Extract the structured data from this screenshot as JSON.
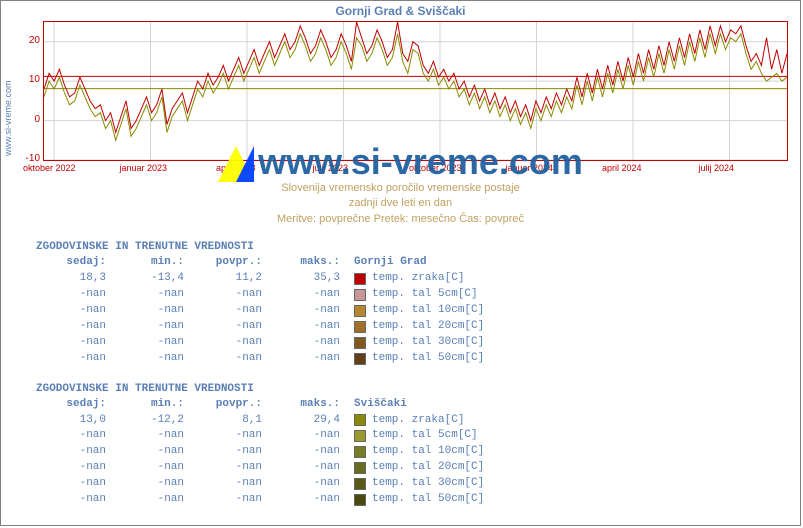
{
  "title": "Gornji Grad & Sviščaki",
  "ylabel": "www.si-vreme.com",
  "watermark": "www.si-vreme.com",
  "subtitle1": "Slovenija   vremensko poročilo   vremenske postaje",
  "subtitle2": "zadnji dve leti   en dan",
  "subtitle3": "Meritve: povprečne   Pretek: mesečno   Čas: povpreč",
  "chart": {
    "type": "line",
    "ylim": [
      -10,
      25
    ],
    "yticks": [
      -10,
      0,
      10,
      20
    ],
    "xticks": [
      "oktober 2022",
      "januar 2023",
      "april 2023",
      "julij 2023",
      "oktober 2023",
      "januar 2024",
      "april 2024",
      "julij 2024"
    ],
    "grid_color": "#d3d3d3",
    "border_color": "#c00000",
    "background_color": "#ffffff",
    "ref_lines": [
      {
        "y": 11.2,
        "color": "#c00000"
      },
      {
        "y": 8.1,
        "color": "#8a8a00"
      }
    ],
    "series": [
      {
        "name": "Gornji Grad",
        "color": "#c00000",
        "data": [
          8,
          12,
          10,
          13,
          9,
          6,
          7,
          11,
          8,
          5,
          3,
          4,
          0,
          2,
          -3,
          1,
          5,
          -2,
          0,
          3,
          6,
          2,
          4,
          8,
          -1,
          3,
          5,
          7,
          2,
          6,
          10,
          8,
          12,
          9,
          11,
          14,
          10,
          13,
          16,
          12,
          15,
          18,
          14,
          17,
          20,
          16,
          19,
          22,
          18,
          20,
          24,
          21,
          17,
          19,
          23,
          20,
          16,
          18,
          22,
          19,
          15,
          25,
          21,
          17,
          19,
          23,
          20,
          16,
          18,
          25,
          17,
          15,
          20,
          19,
          14,
          12,
          15,
          11,
          13,
          10,
          12,
          8,
          10,
          6,
          9,
          5,
          8,
          4,
          7,
          3,
          6,
          2,
          5,
          1,
          4,
          0,
          5,
          2,
          6,
          3,
          7,
          4,
          8,
          5,
          11,
          6,
          12,
          7,
          13,
          8,
          14,
          9,
          15,
          10,
          16,
          11,
          17,
          12,
          18,
          13,
          19,
          14,
          20,
          15,
          21,
          16,
          22,
          17,
          23,
          18,
          24,
          19,
          24,
          20,
          23,
          22,
          24,
          19,
          15,
          17,
          14,
          21,
          13,
          18,
          12,
          17
        ]
      },
      {
        "name": "Sviščaki",
        "color": "#8a8a00",
        "data": [
          6,
          10,
          8,
          11,
          7,
          4,
          5,
          9,
          6,
          3,
          1,
          2,
          -2,
          0,
          -5,
          -1,
          3,
          -4,
          -2,
          1,
          4,
          0,
          2,
          6,
          -3,
          1,
          3,
          5,
          0,
          4,
          8,
          6,
          10,
          7,
          9,
          12,
          8,
          11,
          14,
          10,
          13,
          16,
          12,
          15,
          18,
          14,
          17,
          20,
          16,
          18,
          22,
          19,
          15,
          17,
          21,
          18,
          14,
          16,
          20,
          17,
          13,
          21,
          19,
          15,
          17,
          21,
          18,
          14,
          16,
          22,
          15,
          12,
          18,
          17,
          12,
          10,
          13,
          9,
          11,
          8,
          10,
          6,
          8,
          4,
          7,
          3,
          6,
          2,
          5,
          1,
          4,
          0,
          3,
          -1,
          2,
          -2,
          3,
          0,
          4,
          1,
          5,
          2,
          6,
          3,
          9,
          4,
          10,
          5,
          11,
          6,
          12,
          7,
          13,
          8,
          14,
          9,
          15,
          10,
          16,
          11,
          17,
          12,
          18,
          13,
          19,
          14,
          20,
          15,
          21,
          16,
          22,
          17,
          22,
          18,
          21,
          20,
          22,
          17,
          13,
          15,
          12,
          10,
          11,
          12,
          10,
          11
        ]
      }
    ]
  },
  "tables": [
    {
      "title": "ZGODOVINSKE IN TRENUTNE VREDNOSTI",
      "station": "Gornji Grad",
      "headers": {
        "now": "sedaj:",
        "min": "min.:",
        "avg": "povpr.:",
        "max": "maks.:"
      },
      "rows": [
        {
          "now": "18,3",
          "min": "-13,4",
          "avg": "11,2",
          "max": "35,3",
          "sw": "#c00000",
          "label": "temp. zraka[C]"
        },
        {
          "now": "-nan",
          "min": "-nan",
          "avg": "-nan",
          "max": "-nan",
          "sw": "#c89898",
          "label": "temp. tal  5cm[C]"
        },
        {
          "now": "-nan",
          "min": "-nan",
          "avg": "-nan",
          "max": "-nan",
          "sw": "#b88830",
          "label": "temp. tal 10cm[C]"
        },
        {
          "now": "-nan",
          "min": "-nan",
          "avg": "-nan",
          "max": "-nan",
          "sw": "#a07028",
          "label": "temp. tal 20cm[C]"
        },
        {
          "now": "-nan",
          "min": "-nan",
          "avg": "-nan",
          "max": "-nan",
          "sw": "#805820",
          "label": "temp. tal 30cm[C]"
        },
        {
          "now": "-nan",
          "min": "-nan",
          "avg": "-nan",
          "max": "-nan",
          "sw": "#604018",
          "label": "temp. tal 50cm[C]"
        }
      ]
    },
    {
      "title": "ZGODOVINSKE IN TRENUTNE VREDNOSTI",
      "station": "Sviščaki",
      "headers": {
        "now": "sedaj:",
        "min": "min.:",
        "avg": "povpr.:",
        "max": "maks.:"
      },
      "rows": [
        {
          "now": "13,0",
          "min": "-12,2",
          "avg": "8,1",
          "max": "29,4",
          "sw": "#8a8a00",
          "label": "temp. zraka[C]"
        },
        {
          "now": "-nan",
          "min": "-nan",
          "avg": "-nan",
          "max": "-nan",
          "sw": "#9a9a30",
          "label": "temp. tal  5cm[C]"
        },
        {
          "now": "-nan",
          "min": "-nan",
          "avg": "-nan",
          "max": "-nan",
          "sw": "#7a7a28",
          "label": "temp. tal 10cm[C]"
        },
        {
          "now": "-nan",
          "min": "-nan",
          "avg": "-nan",
          "max": "-nan",
          "sw": "#6a6a20",
          "label": "temp. tal 20cm[C]"
        },
        {
          "now": "-nan",
          "min": "-nan",
          "avg": "-nan",
          "max": "-nan",
          "sw": "#5a5a18",
          "label": "temp. tal 30cm[C]"
        },
        {
          "now": "-nan",
          "min": "-nan",
          "avg": "-nan",
          "max": "-nan",
          "sw": "#4a4a10",
          "label": "temp. tal 50cm[C]"
        }
      ]
    }
  ]
}
